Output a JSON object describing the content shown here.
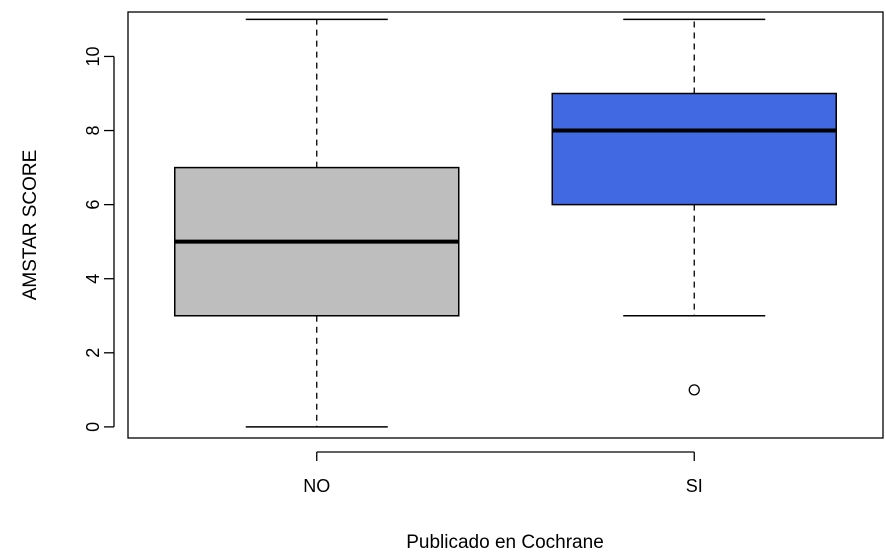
{
  "chart_data": {
    "type": "boxplot",
    "title": "",
    "xlabel": "Publicado en Cochrane",
    "ylabel": "AMSTAR SCORE",
    "ylim": [
      -0.3,
      11.2
    ],
    "yticks": [
      0,
      2,
      4,
      6,
      8,
      10
    ],
    "ytick_labels": [
      "0",
      "2",
      "4",
      "6",
      "8",
      "10"
    ],
    "grid": false,
    "legend": "none",
    "groups": [
      {
        "label": "NO",
        "min": 0,
        "q1": 3,
        "median": 5,
        "q3": 7,
        "max": 11,
        "outliers": [],
        "color": "#bebebe"
      },
      {
        "label": "SI",
        "min": 3,
        "q1": 6,
        "median": 8,
        "q3": 9,
        "max": 11,
        "outliers": [
          1
        ],
        "color": "#4169e1"
      }
    ]
  }
}
